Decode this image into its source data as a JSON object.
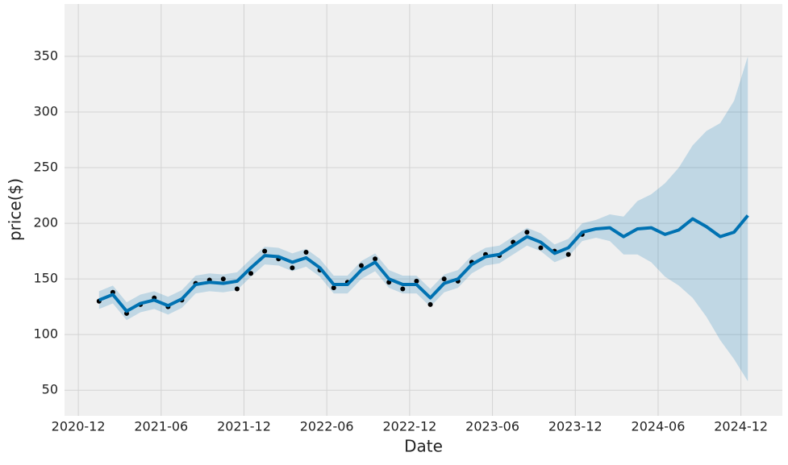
{
  "chart_data": {
    "type": "line",
    "x_label": "Date",
    "y_label": "price($)",
    "x": [
      "2021-01",
      "2021-02",
      "2021-03",
      "2021-04",
      "2021-05",
      "2021-06",
      "2021-07",
      "2021-08",
      "2021-09",
      "2021-10",
      "2021-11",
      "2021-12",
      "2022-01",
      "2022-02",
      "2022-03",
      "2022-04",
      "2022-05",
      "2022-06",
      "2022-07",
      "2022-08",
      "2022-09",
      "2022-10",
      "2022-11",
      "2022-12",
      "2023-01",
      "2023-02",
      "2023-03",
      "2023-04",
      "2023-05",
      "2023-06",
      "2023-07",
      "2023-08",
      "2023-09",
      "2023-10",
      "2023-11",
      "2023-12",
      "2024-01",
      "2024-02",
      "2024-03",
      "2024-04",
      "2024-05",
      "2024-06",
      "2024-07",
      "2024-08",
      "2024-09",
      "2024-10",
      "2024-11",
      "2024-12"
    ],
    "series": [
      {
        "color": "#000000",
        "marker": "dot",
        "values": [
          130,
          138,
          119,
          127,
          133,
          125,
          131,
          146,
          149,
          150,
          141,
          155,
          175,
          168,
          160,
          174,
          158,
          142,
          147,
          162,
          168,
          147,
          141,
          148,
          127,
          150,
          148,
          165,
          172,
          171,
          183,
          192,
          178,
          175,
          172,
          190,
          null,
          null,
          null,
          null,
          null,
          null,
          null,
          null,
          null,
          null,
          null,
          null
        ]
      },
      {
        "color": "#0072b2",
        "values": [
          131,
          136,
          121,
          128,
          131,
          126,
          132,
          145,
          147,
          146,
          148,
          160,
          171,
          170,
          165,
          169,
          160,
          145,
          145,
          158,
          165,
          150,
          145,
          145,
          133,
          146,
          150,
          163,
          170,
          172,
          180,
          188,
          183,
          173,
          178,
          192,
          195,
          196,
          188,
          195,
          196,
          190,
          194,
          204,
          197,
          188,
          192,
          207
        ]
      },
      {
        "color": "#0072b2",
        "opacity": 0.2,
        "lower": [
          123,
          128,
          113,
          120,
          123,
          118,
          124,
          137,
          139,
          138,
          140,
          152,
          163,
          162,
          157,
          161,
          152,
          137,
          137,
          150,
          157,
          142,
          137,
          137,
          125,
          138,
          142,
          155,
          162,
          164,
          172,
          180,
          175,
          165,
          170,
          184,
          187,
          184,
          172,
          172,
          165,
          152,
          144,
          133,
          116,
          95,
          78,
          58
        ],
        "upper": [
          139,
          144,
          129,
          136,
          139,
          134,
          140,
          153,
          155,
          154,
          156,
          168,
          179,
          178,
          173,
          177,
          168,
          153,
          153,
          166,
          173,
          158,
          153,
          153,
          141,
          154,
          158,
          171,
          178,
          180,
          188,
          196,
          191,
          181,
          186,
          200,
          203,
          208,
          206,
          220,
          226,
          236,
          250,
          270,
          283,
          290,
          310,
          350
        ]
      }
    ],
    "xlim": [
      "2020-11",
      "2025-03"
    ],
    "xticks": [
      "2020-12",
      "2021-06",
      "2021-12",
      "2022-06",
      "2022-12",
      "2023-06",
      "2023-12",
      "2024-06",
      "2024-12"
    ],
    "ylim": [
      27,
      397
    ],
    "yticks": [
      50,
      100,
      150,
      200,
      250,
      300,
      350
    ],
    "grid": true,
    "background": "#f0f0f0"
  }
}
